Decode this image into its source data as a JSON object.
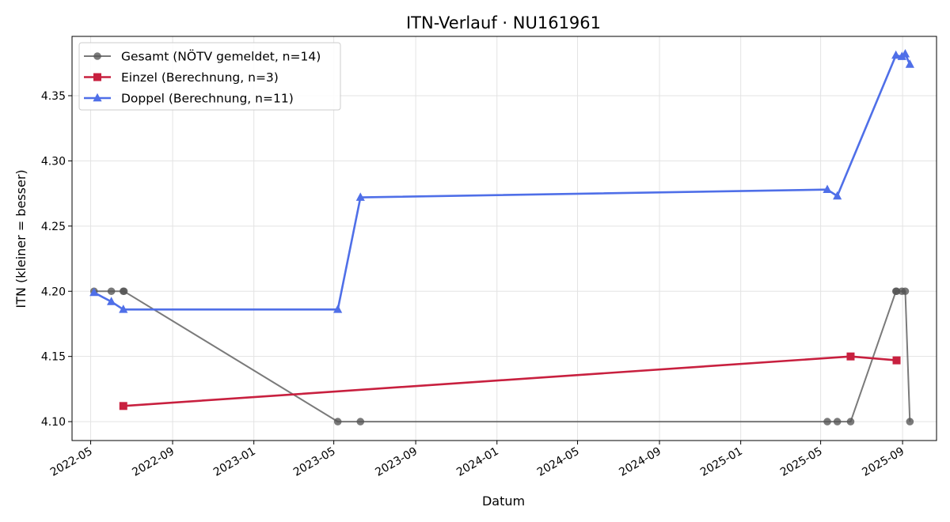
{
  "chart_data": {
    "type": "line",
    "title": "ITN-Verlauf · NU161961",
    "xlabel": "Datum",
    "ylabel": "ITN  (kleiner = besser)",
    "xlim": [
      "2022-04-03",
      "2025-10-22"
    ],
    "ylim": [
      4.0855,
      4.3955
    ],
    "x_ticks": [
      "2022-05",
      "2022-09",
      "2023-01",
      "2023-05",
      "2023-09",
      "2024-01",
      "2024-05",
      "2024-09",
      "2025-01",
      "2025-05",
      "2025-09"
    ],
    "y_ticks": [
      4.1,
      4.15,
      4.2,
      4.25,
      4.3,
      4.35
    ],
    "grid": true,
    "legend_position": "top-left",
    "series": [
      {
        "name": "Gesamt (NÖTV gemeldet, n=14)",
        "color": "#555555",
        "marker": "circle",
        "points": [
          {
            "x": "2022-05-06",
            "y": 4.2
          },
          {
            "x": "2022-06-01",
            "y": 4.2
          },
          {
            "x": "2022-06-19",
            "y": 4.2
          },
          {
            "x": "2022-06-20",
            "y": 4.2
          },
          {
            "x": "2023-05-07",
            "y": 4.1
          },
          {
            "x": "2023-06-10",
            "y": 4.1
          },
          {
            "x": "2025-05-11",
            "y": 4.1
          },
          {
            "x": "2025-05-26",
            "y": 4.1
          },
          {
            "x": "2025-06-15",
            "y": 4.1
          },
          {
            "x": "2025-08-22",
            "y": 4.2
          },
          {
            "x": "2025-08-23",
            "y": 4.2
          },
          {
            "x": "2025-08-31",
            "y": 4.2
          },
          {
            "x": "2025-09-05",
            "y": 4.2
          },
          {
            "x": "2025-09-12",
            "y": 4.1
          }
        ]
      },
      {
        "name": "Einzel (Berechnung, n=3)",
        "color": "#c8203f",
        "marker": "square",
        "points": [
          {
            "x": "2022-06-19",
            "y": 4.112
          },
          {
            "x": "2025-06-15",
            "y": 4.15
          },
          {
            "x": "2025-08-23",
            "y": 4.147
          }
        ]
      },
      {
        "name": "Doppel (Berechnung, n=11)",
        "color": "#4f6fe8",
        "marker": "triangle",
        "points": [
          {
            "x": "2022-05-06",
            "y": 4.199
          },
          {
            "x": "2022-06-01",
            "y": 4.192
          },
          {
            "x": "2022-06-19",
            "y": 4.186
          },
          {
            "x": "2023-05-07",
            "y": 4.186
          },
          {
            "x": "2023-06-10",
            "y": 4.272
          },
          {
            "x": "2025-05-11",
            "y": 4.278
          },
          {
            "x": "2025-05-26",
            "y": 4.273
          },
          {
            "x": "2025-08-22",
            "y": 4.381
          },
          {
            "x": "2025-08-31",
            "y": 4.38
          },
          {
            "x": "2025-09-05",
            "y": 4.382
          },
          {
            "x": "2025-09-12",
            "y": 4.374
          }
        ]
      }
    ]
  }
}
